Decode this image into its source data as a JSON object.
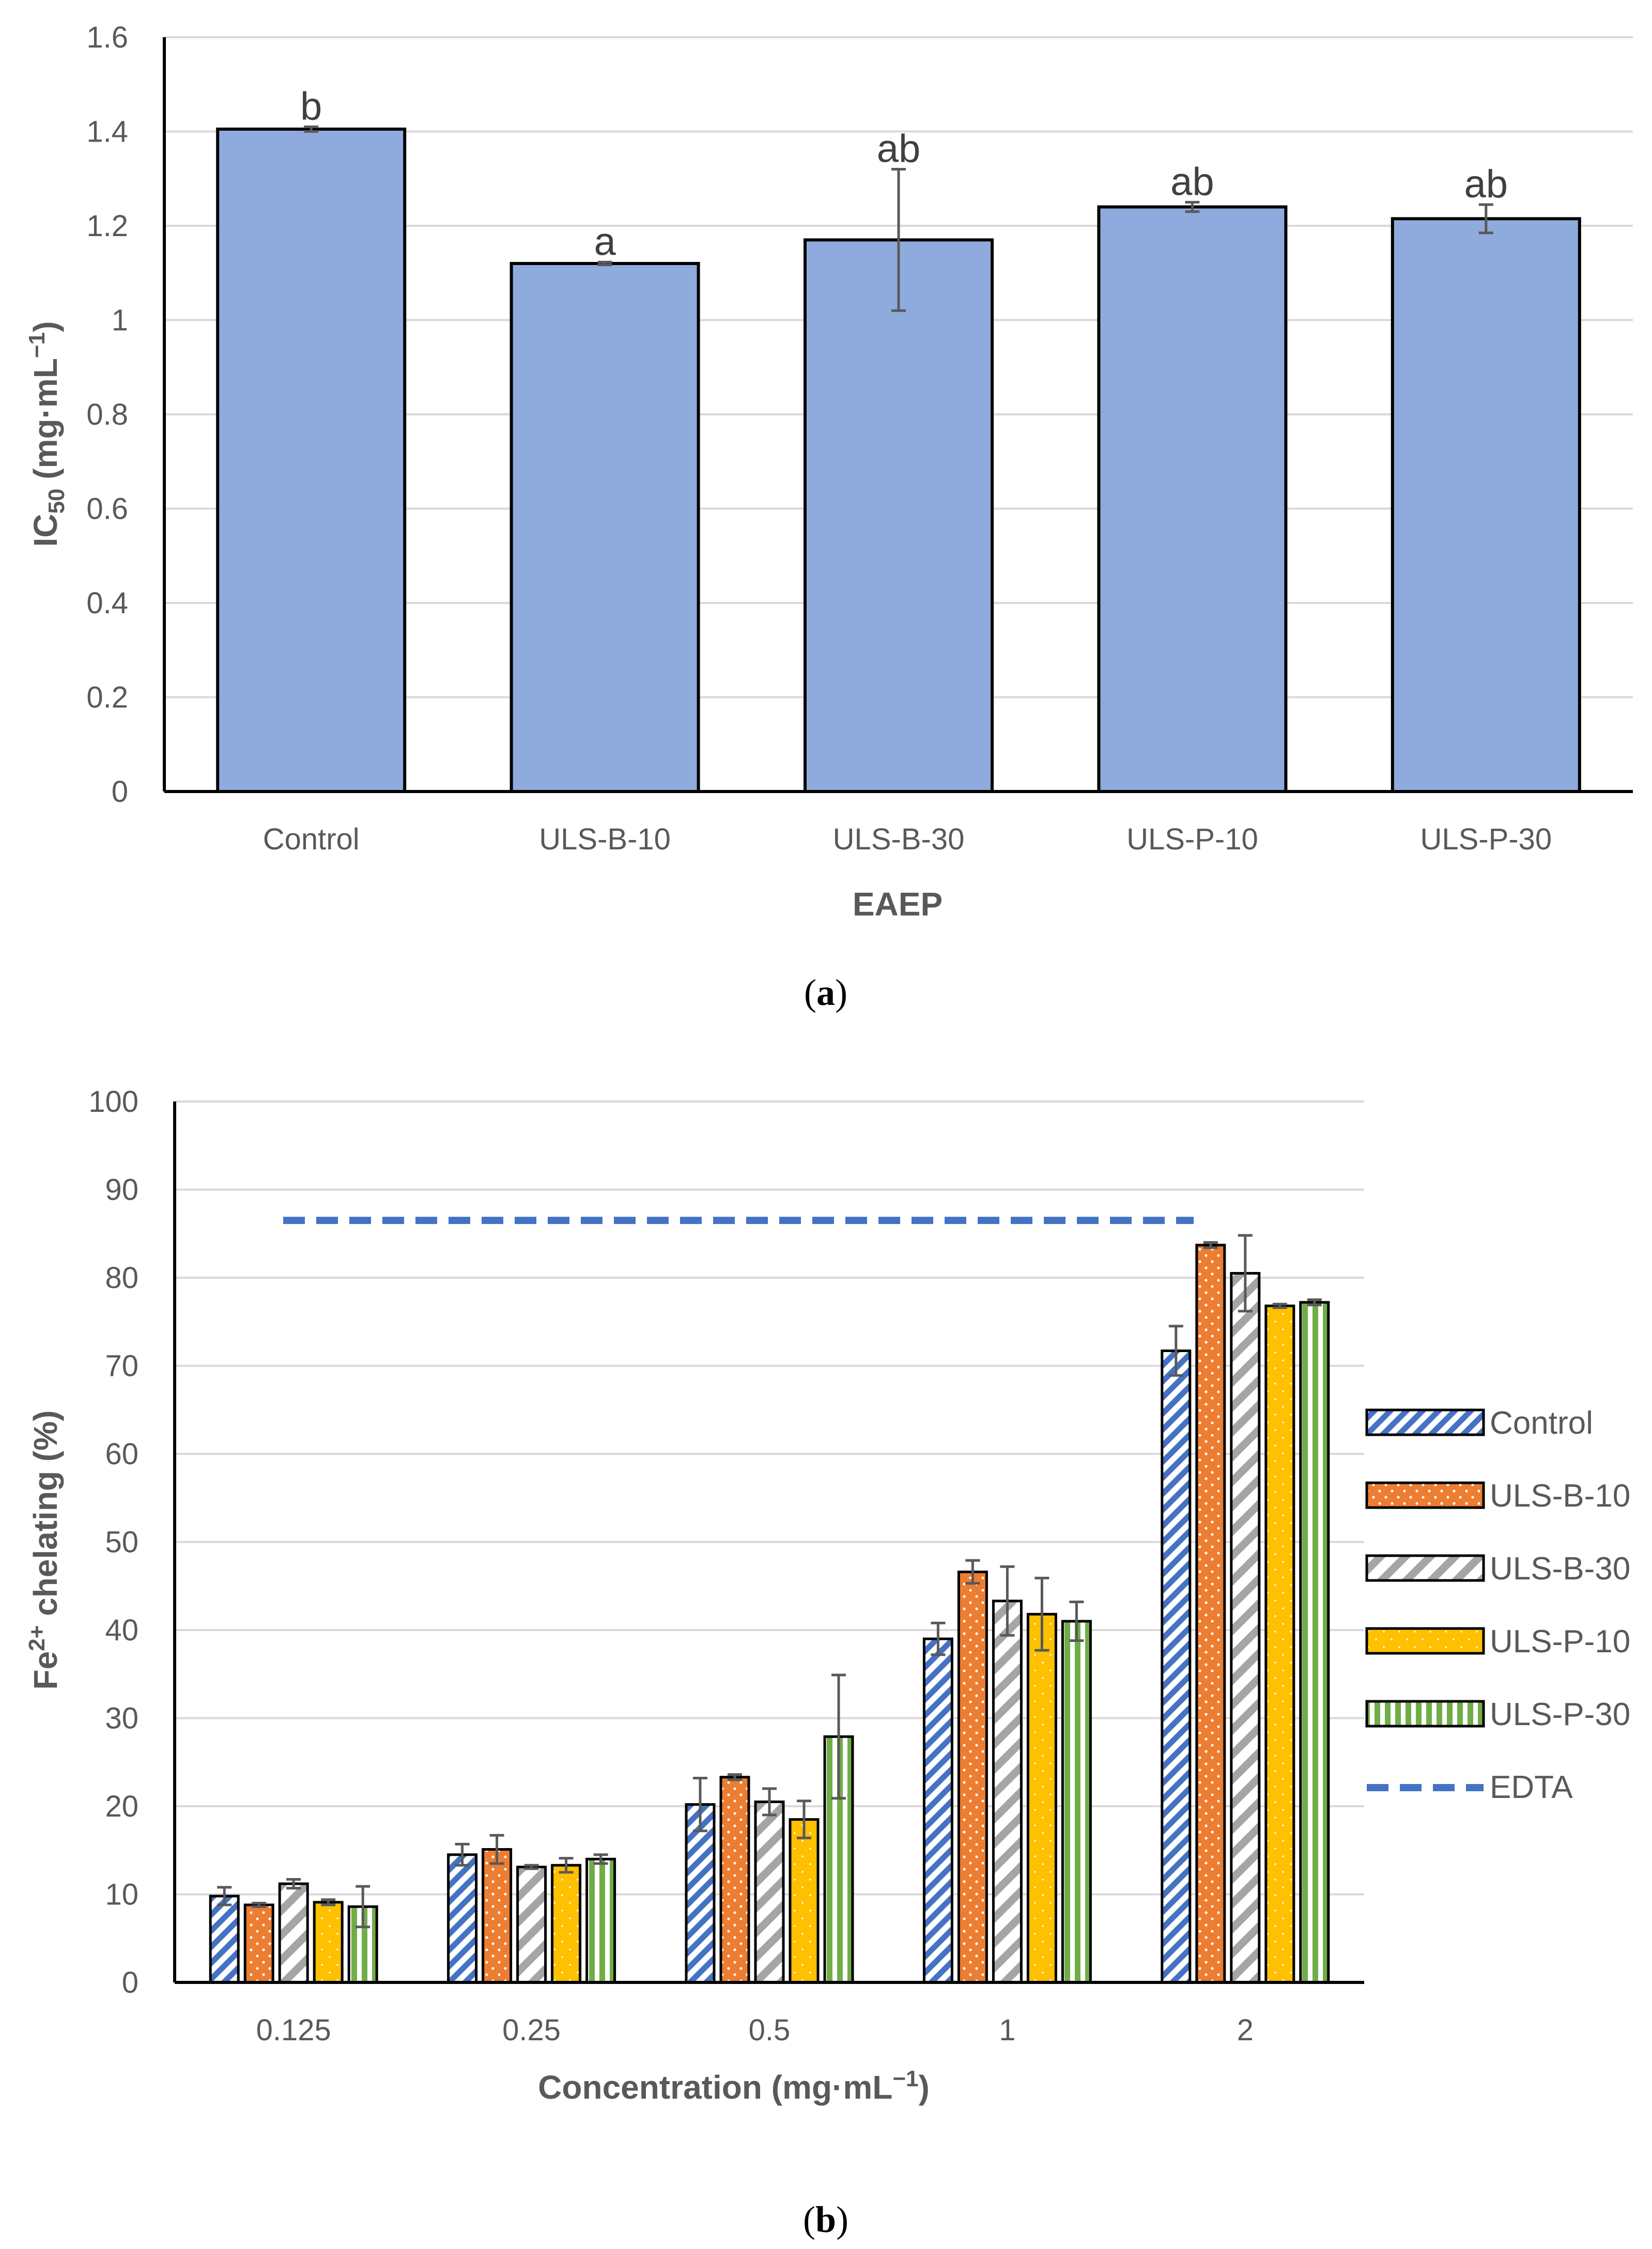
{
  "colors": {
    "bar_a": "#8FAADC",
    "control": "#4472C4",
    "uls_b_10": "#ED7D31",
    "uls_b_30": "#A5A5A5",
    "uls_p_10": "#FFC000",
    "uls_p_30": "#70AD47",
    "edta": "#4472C4",
    "grid": "#D9D9D9",
    "axis": "#000000"
  },
  "chart_data": [
    {
      "type": "bar",
      "panel_label": "(a)",
      "categories": [
        "Control",
        "ULS-B-10",
        "ULS-B-30",
        "ULS-P-10",
        "ULS-P-30"
      ],
      "values": [
        1.405,
        1.12,
        1.17,
        1.24,
        1.215
      ],
      "errors": [
        0.005,
        0.003,
        0.15,
        0.01,
        0.03
      ],
      "significance": [
        "b",
        "a",
        "ab",
        "ab",
        "ab"
      ],
      "ylabel": "IC50 (mg·mL−1)",
      "ylabel_main": "IC",
      "ylabel_sub": "50",
      "ylabel_unit": " (mg·mL",
      "ylabel_sup": "−1",
      "ylabel_close": ")",
      "xlabel": "EAEP",
      "ylim": [
        0,
        1.6
      ],
      "yticks": [
        "0",
        "0.2",
        "0.4",
        "0.6",
        "0.8",
        "1",
        "1.2",
        "1.4",
        "1.6"
      ],
      "grid": true
    },
    {
      "type": "bar",
      "panel_label": "(b)",
      "categories": [
        "0.125",
        "0.25",
        "0.5",
        "1",
        "2"
      ],
      "series": [
        {
          "name": "Control",
          "values": [
            9.8,
            14.5,
            20.2,
            39.0,
            71.7
          ],
          "errors": [
            1.0,
            1.2,
            3.0,
            1.8,
            2.8
          ]
        },
        {
          "name": "ULS-B-10",
          "values": [
            8.8,
            15.1,
            23.3,
            46.6,
            83.7
          ],
          "errors": [
            0.2,
            1.6,
            0.3,
            1.3,
            0.3
          ]
        },
        {
          "name": "ULS-B-30",
          "values": [
            11.2,
            13.1,
            20.5,
            43.3,
            80.5
          ],
          "errors": [
            0.5,
            0.2,
            1.5,
            3.9,
            4.3
          ]
        },
        {
          "name": "ULS-P-10",
          "values": [
            9.1,
            13.3,
            18.5,
            41.8,
            76.8
          ],
          "errors": [
            0.3,
            0.8,
            2.1,
            4.1,
            0.2
          ]
        },
        {
          "name": "ULS-P-30",
          "values": [
            8.6,
            14.0,
            27.9,
            41.0,
            77.2
          ],
          "errors": [
            2.3,
            0.5,
            7.0,
            2.2,
            0.3
          ]
        }
      ],
      "reference_line": {
        "name": "EDTA",
        "value": 86.5
      },
      "ylabel": "Fe2+ chelating (%)",
      "ylabel_main": "Fe",
      "ylabel_sup": "2+",
      "ylabel_rest": " chelating (%)",
      "xlabel": "Concentration (mg·mL−1)",
      "xlabel_main": "Concentration (mg·mL",
      "xlabel_sup": "−1",
      "xlabel_close": ")",
      "ylim": [
        0,
        100
      ],
      "yticks": [
        "0",
        "10",
        "20",
        "30",
        "40",
        "50",
        "60",
        "70",
        "80",
        "90",
        "100"
      ],
      "legend_position": "right",
      "grid": true
    }
  ]
}
